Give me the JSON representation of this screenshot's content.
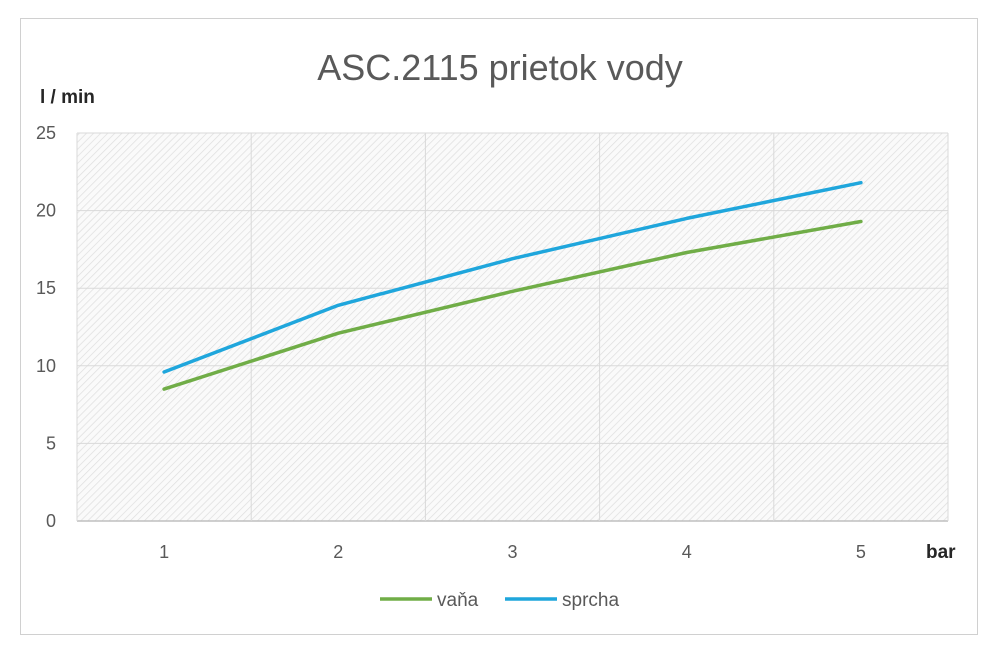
{
  "chart_data": {
    "type": "line",
    "title": "ASC.2115 prietok vody",
    "ylabel": "l / min",
    "xlabel": "bar",
    "categories": [
      "1",
      "2",
      "3",
      "4",
      "5"
    ],
    "yticks": [
      "0",
      "5",
      "10",
      "15",
      "20",
      "25"
    ],
    "ylim": [
      0,
      25
    ],
    "grid": true,
    "legend_position": "bottom",
    "series": [
      {
        "name": "vaňa",
        "color": "#70ad47",
        "values": [
          8.5,
          12.1,
          14.8,
          17.3,
          19.3
        ]
      },
      {
        "name": "sprcha",
        "color": "#1fa6dc",
        "values": [
          9.6,
          13.9,
          16.9,
          19.5,
          21.8
        ]
      }
    ]
  }
}
